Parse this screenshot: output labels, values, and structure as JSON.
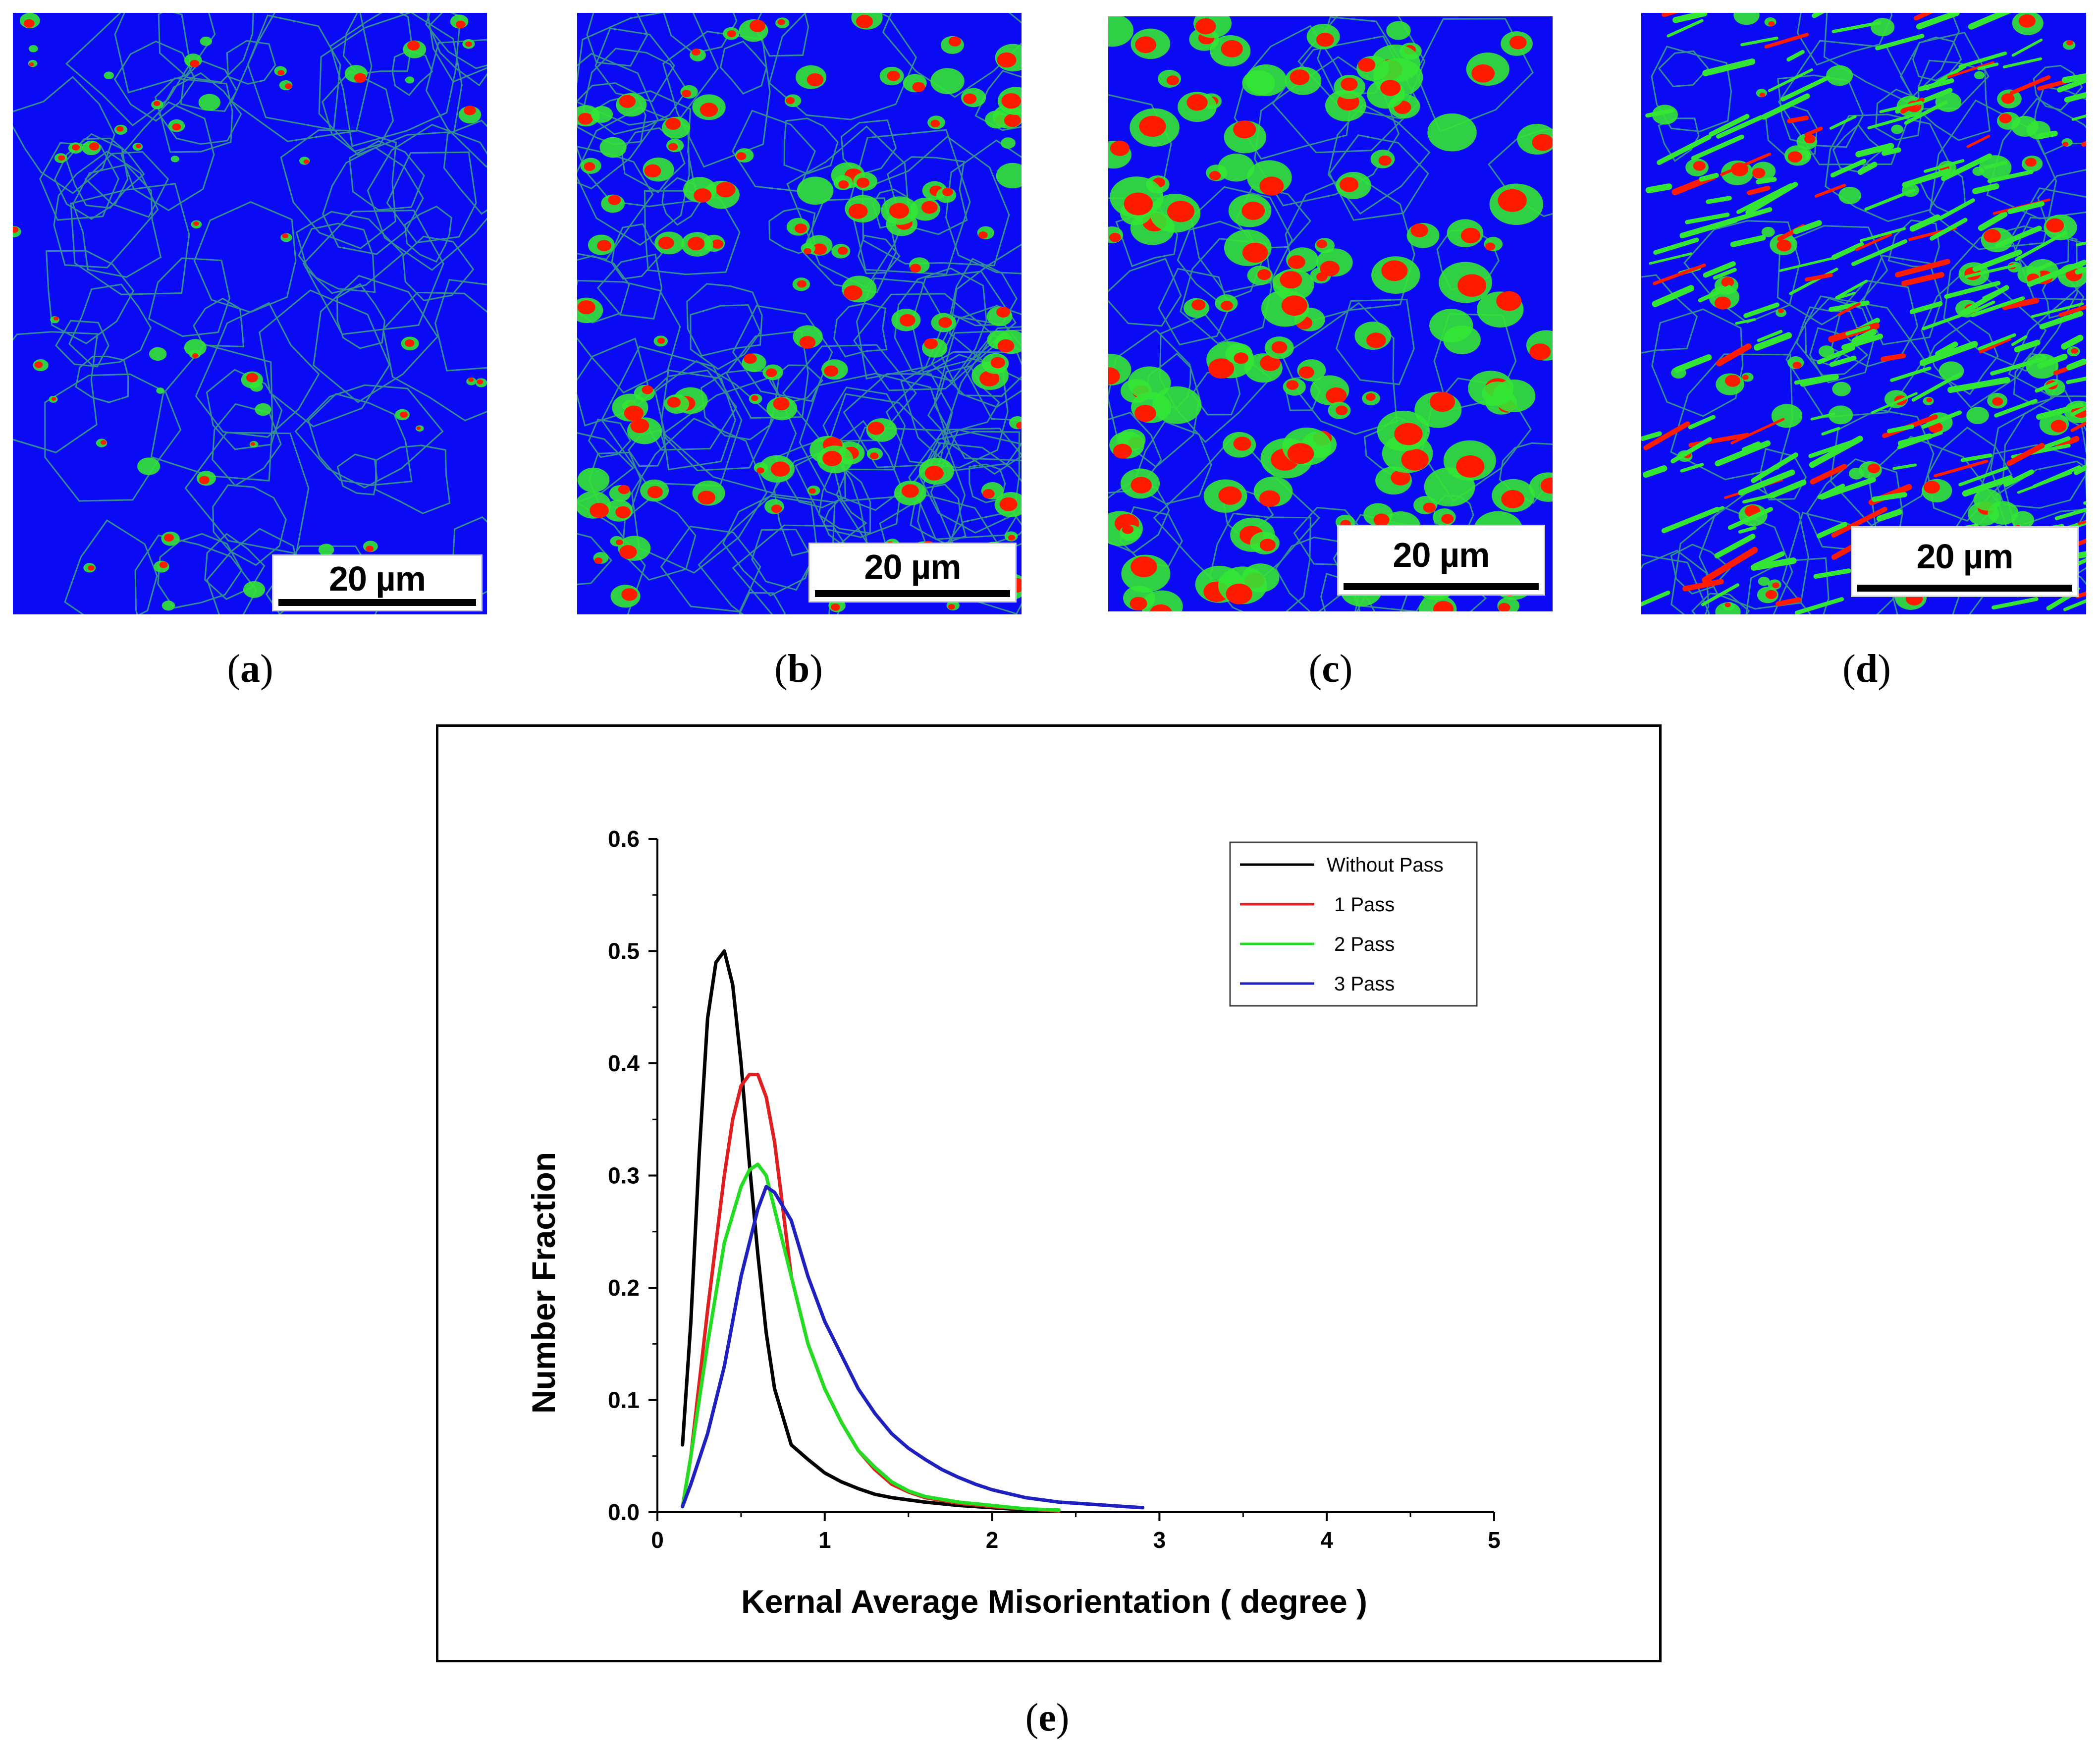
{
  "panels": [
    {
      "id": "a",
      "label": "(a)",
      "letter": "a",
      "scale_text": "20 µm"
    },
    {
      "id": "b",
      "label": "(b)",
      "letter": "b",
      "scale_text": "20 µm"
    },
    {
      "id": "c",
      "label": "(c)",
      "letter": "c",
      "scale_text": "20 µm"
    },
    {
      "id": "d",
      "label": "(d)",
      "letter": "d",
      "scale_text": "20 µm"
    }
  ],
  "colors": {
    "matrix": "#0a0af5",
    "low": "#33e633",
    "high": "#ff1a00",
    "boundary": "#3fae7a"
  },
  "chart_label": "(e)",
  "chart_data": {
    "type": "line",
    "xlabel": "Kernal Average Misorientation ( degree )",
    "ylabel": "Number Fraction",
    "xlim": [
      0,
      5
    ],
    "ylim": [
      0,
      0.6
    ],
    "xticks": [
      "0",
      "1",
      "2",
      "3",
      "4",
      "5"
    ],
    "yticks": [
      "0.0",
      "0.1",
      "0.2",
      "0.3",
      "0.4",
      "0.5",
      "0.6"
    ],
    "legend_position": "top-right",
    "series": [
      {
        "name": "Without Pass",
        "color": "#000000",
        "x": [
          0.15,
          0.2,
          0.25,
          0.3,
          0.35,
          0.4,
          0.45,
          0.5,
          0.55,
          0.6,
          0.65,
          0.7,
          0.8,
          0.9,
          1.0,
          1.1,
          1.2,
          1.3,
          1.4,
          1.5,
          1.6,
          1.8,
          2.0,
          2.2,
          2.4
        ],
        "y": [
          0.06,
          0.17,
          0.32,
          0.44,
          0.49,
          0.5,
          0.47,
          0.4,
          0.31,
          0.23,
          0.16,
          0.11,
          0.06,
          0.047,
          0.035,
          0.027,
          0.021,
          0.016,
          0.013,
          0.011,
          0.009,
          0.006,
          0.004,
          0.002,
          0.001
        ]
      },
      {
        "name": "1 Pass",
        "color": "#e02020",
        "x": [
          0.15,
          0.2,
          0.3,
          0.4,
          0.45,
          0.5,
          0.55,
          0.6,
          0.65,
          0.7,
          0.75,
          0.8,
          0.9,
          1.0,
          1.1,
          1.2,
          1.3,
          1.4,
          1.5,
          1.6,
          1.8,
          2.0,
          2.2,
          2.4
        ],
        "y": [
          0.005,
          0.05,
          0.18,
          0.3,
          0.35,
          0.38,
          0.39,
          0.39,
          0.37,
          0.33,
          0.27,
          0.21,
          0.15,
          0.11,
          0.08,
          0.055,
          0.038,
          0.025,
          0.018,
          0.013,
          0.008,
          0.005,
          0.003,
          0.001
        ]
      },
      {
        "name": "2 Pass",
        "color": "#22dd22",
        "x": [
          0.15,
          0.2,
          0.3,
          0.4,
          0.5,
          0.55,
          0.6,
          0.65,
          0.7,
          0.8,
          0.9,
          1.0,
          1.1,
          1.2,
          1.3,
          1.4,
          1.5,
          1.6,
          1.8,
          2.0,
          2.2,
          2.4
        ],
        "y": [
          0.005,
          0.05,
          0.15,
          0.24,
          0.29,
          0.305,
          0.31,
          0.3,
          0.27,
          0.21,
          0.15,
          0.11,
          0.08,
          0.055,
          0.04,
          0.027,
          0.019,
          0.014,
          0.009,
          0.006,
          0.003,
          0.002
        ]
      },
      {
        "name": "3 Pass",
        "color": "#2020c0",
        "x": [
          0.15,
          0.2,
          0.3,
          0.4,
          0.5,
          0.6,
          0.65,
          0.7,
          0.8,
          0.9,
          1.0,
          1.1,
          1.2,
          1.3,
          1.4,
          1.5,
          1.6,
          1.7,
          1.8,
          1.9,
          2.0,
          2.2,
          2.4,
          2.6,
          2.8,
          2.9
        ],
        "y": [
          0.005,
          0.025,
          0.07,
          0.13,
          0.21,
          0.27,
          0.29,
          0.285,
          0.26,
          0.21,
          0.17,
          0.14,
          0.11,
          0.088,
          0.07,
          0.057,
          0.047,
          0.038,
          0.031,
          0.025,
          0.02,
          0.013,
          0.009,
          0.007,
          0.005,
          0.004
        ]
      }
    ]
  }
}
